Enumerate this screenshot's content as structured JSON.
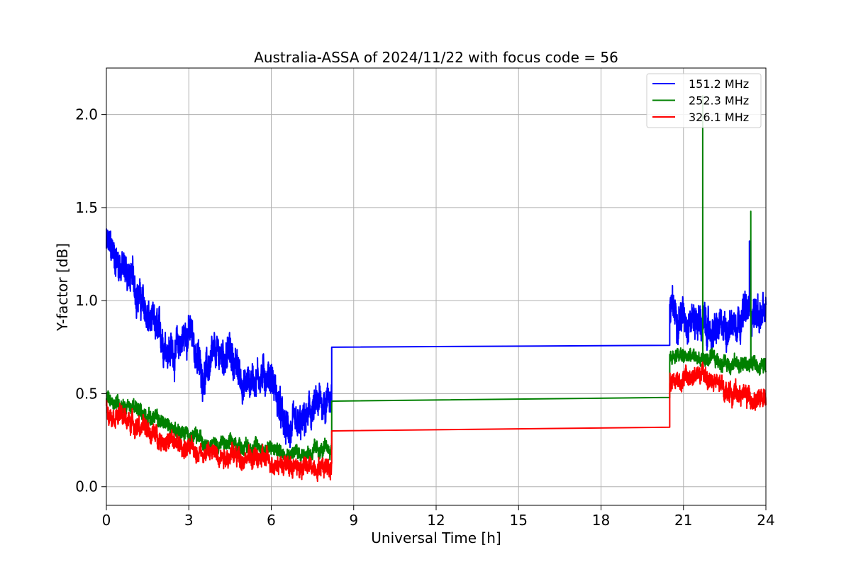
{
  "chart_data": {
    "type": "line",
    "title": "Australia-ASSA of 2024/11/22 with focus code = 56",
    "xlabel": "Universal Time [h]",
    "ylabel": "Y-factor [dB]",
    "xlim": [
      0,
      24
    ],
    "ylim": [
      -0.1,
      2.25
    ],
    "xticks": [
      0,
      3,
      6,
      9,
      12,
      15,
      18,
      21,
      24
    ],
    "xtick_labels": [
      "0",
      "3",
      "6",
      "9",
      "12",
      "15",
      "18",
      "21",
      "24"
    ],
    "yticks": [
      0.0,
      0.5,
      1.0,
      1.5,
      2.0
    ],
    "ytick_labels": [
      "0.0",
      "0.5",
      "1.0",
      "1.5",
      "2.0"
    ],
    "grid": true,
    "legend_position": "top-right",
    "series": [
      {
        "name": "151.2 MHz",
        "color": "#0000ff",
        "noise": 0.09,
        "points": [
          [
            0,
            1.3
          ],
          [
            0.5,
            1.2
          ],
          [
            1.0,
            1.1
          ],
          [
            1.5,
            0.9
          ],
          [
            2.0,
            0.8
          ],
          [
            2.5,
            0.72
          ],
          [
            3.0,
            0.85
          ],
          [
            3.5,
            0.6
          ],
          [
            4.0,
            0.7
          ],
          [
            4.5,
            0.72
          ],
          [
            5.0,
            0.55
          ],
          [
            5.5,
            0.6
          ],
          [
            6.0,
            0.6
          ],
          [
            6.5,
            0.3
          ],
          [
            7.0,
            0.3
          ],
          [
            7.5,
            0.4
          ],
          [
            8.2,
            0.5
          ]
        ],
        "gap": [
          [
            8.2,
            0.75
          ],
          [
            20.5,
            0.76
          ]
        ],
        "points2": [
          [
            20.5,
            0.95
          ],
          [
            21.0,
            0.92
          ],
          [
            21.5,
            0.9
          ],
          [
            22.0,
            0.82
          ],
          [
            22.5,
            0.85
          ],
          [
            23.0,
            0.92
          ],
          [
            23.5,
            0.95
          ],
          [
            24.0,
            0.9
          ]
        ],
        "spikes": [
          [
            23.4,
            1.32
          ]
        ]
      },
      {
        "name": "252.3 MHz",
        "color": "#008000",
        "noise": 0.04,
        "points": [
          [
            0,
            0.48
          ],
          [
            1.0,
            0.42
          ],
          [
            2.0,
            0.35
          ],
          [
            3.0,
            0.27
          ],
          [
            4.0,
            0.23
          ],
          [
            5.0,
            0.22
          ],
          [
            6.0,
            0.2
          ],
          [
            7.0,
            0.18
          ],
          [
            8.2,
            0.2
          ]
        ],
        "gap": [
          [
            8.2,
            0.46
          ],
          [
            20.5,
            0.48
          ]
        ],
        "points2": [
          [
            20.5,
            0.7
          ],
          [
            21.0,
            0.7
          ],
          [
            22.0,
            0.68
          ],
          [
            23.0,
            0.66
          ],
          [
            24.0,
            0.65
          ]
        ],
        "spikes": [
          [
            21.7,
            2.1
          ],
          [
            23.45,
            1.48
          ]
        ]
      },
      {
        "name": "326.1 MHz",
        "color": "#ff0000",
        "noise": 0.05,
        "points": [
          [
            0,
            0.42
          ],
          [
            1.0,
            0.34
          ],
          [
            2.0,
            0.26
          ],
          [
            3.0,
            0.2
          ],
          [
            4.0,
            0.18
          ],
          [
            5.0,
            0.16
          ],
          [
            6.0,
            0.14
          ],
          [
            7.0,
            0.1
          ],
          [
            8.2,
            0.12
          ]
        ],
        "gap": [
          [
            8.2,
            0.3
          ],
          [
            20.5,
            0.32
          ]
        ],
        "points2": [
          [
            20.5,
            0.57
          ],
          [
            21.0,
            0.58
          ],
          [
            21.7,
            0.6
          ],
          [
            22.5,
            0.52
          ],
          [
            23.5,
            0.48
          ],
          [
            24.0,
            0.45
          ]
        ],
        "spikes": []
      }
    ]
  }
}
